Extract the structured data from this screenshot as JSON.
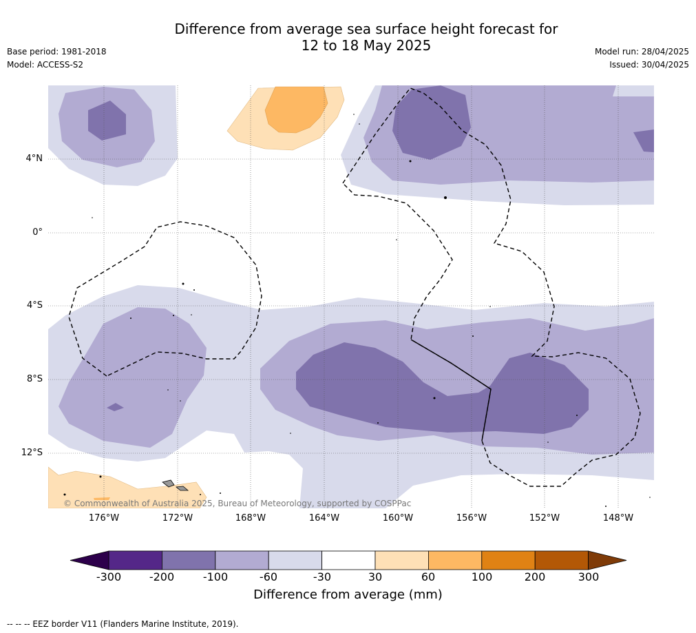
{
  "header": {
    "title_line1": "Difference from average sea surface height forecast for",
    "title_line2": "12 to 18 May 2025",
    "base_period": "Base period: 1981-2018",
    "model": "Model: ACCESS-S2",
    "model_run": "Model run: 28/04/2025",
    "issued": "Issued: 30/04/2025"
  },
  "map": {
    "lat_labels": [
      "4°N",
      "0°",
      "4°S",
      "8°S",
      "12°S"
    ],
    "lon_labels": [
      "176°W",
      "172°W",
      "168°W",
      "164°W",
      "160°W",
      "156°W",
      "152°W",
      "148°W"
    ],
    "copyright": "© Commonwealth of Australia 2025, Bureau of Meteorology, supported by COSPPac",
    "colors": {
      "neg_100_200": "#8073ac",
      "neg_60_100": "#b2abd2",
      "neg_30_60": "#d8daeb",
      "pos_30_60": "#fee0b6",
      "pos_60_100": "#fdb863"
    }
  },
  "colorbar": {
    "ticks": [
      "-300",
      "-200",
      "-100",
      "-60",
      "-30",
      "30",
      "60",
      "100",
      "200",
      "300"
    ],
    "colors": [
      "#542788",
      "#8073ac",
      "#b2abd2",
      "#d8daeb",
      "#ffffff",
      "#fee0b6",
      "#fdb863",
      "#e08214",
      "#b35806"
    ],
    "under_color": "#2d004b",
    "over_color": "#7f3b08",
    "label": "Difference from average (mm)"
  },
  "footnote": "--  --  -- EEZ border V11 (Flanders Marine Institute, 2019)."
}
